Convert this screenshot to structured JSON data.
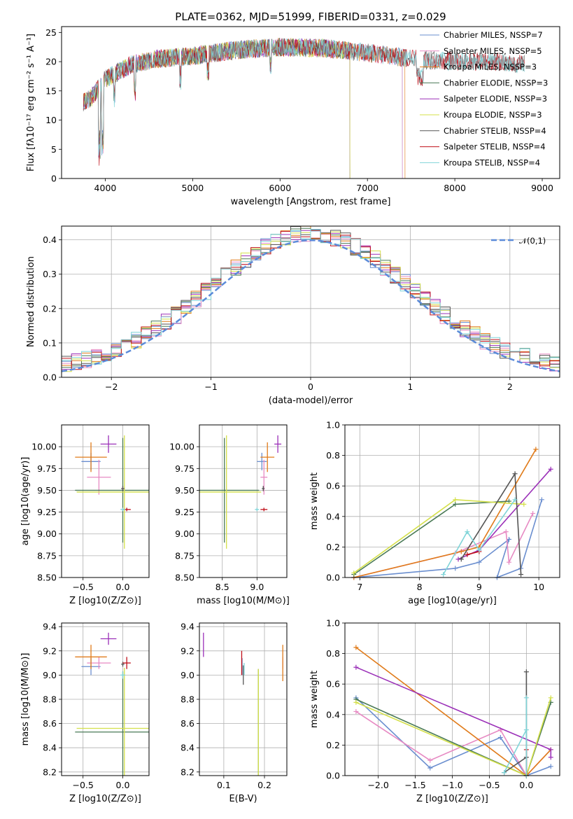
{
  "chart_data": [
    {
      "id": "spectrum",
      "type": "line",
      "title": "PLATE=0362, MJD=51999, FIBERID=0331, z=0.029",
      "xlabel": "wavelength [Angstrom, rest frame]",
      "ylabel": "Flux [fλ10⁻¹⁷ erg cm⁻² s⁻¹ A⁻¹]",
      "xlim": [
        3500,
        9200
      ],
      "ylim": [
        0,
        26
      ],
      "xticks": [
        4000,
        5000,
        6000,
        7000,
        8000,
        9000
      ],
      "yticks": [
        0,
        5,
        10,
        15,
        20,
        25
      ],
      "grid": false,
      "legend_position": "top-right",
      "series": [
        {
          "name": "Chabrier MILES, NSSP=7",
          "color": "#6a8ecf",
          "xrange": [
            3750,
            7400
          ]
        },
        {
          "name": "Salpeter MILES, NSSP=5",
          "color": "#e78ac3",
          "xrange": [
            3750,
            7400
          ]
        },
        {
          "name": "Kroupa MILES, NSSP=3",
          "color": "#e07b1a",
          "xrange": [
            3750,
            7430
          ]
        },
        {
          "name": "Chabrier ELODIE, NSSP=3",
          "color": "#4a7a56",
          "xrange": [
            3750,
            6800
          ]
        },
        {
          "name": "Salpeter ELODIE, NSSP=3",
          "color": "#9b30b8",
          "xrange": [
            3750,
            6800
          ]
        },
        {
          "name": "Kroupa ELODIE, NSSP=3",
          "color": "#d4e04a",
          "xrange": [
            3750,
            6800
          ]
        },
        {
          "name": "Chabrier STELIB, NSSP=4",
          "color": "#555555",
          "xrange": [
            3750,
            8800
          ]
        },
        {
          "name": "Salpeter STELIB, NSSP=4",
          "color": "#c0101a",
          "xrange": [
            3750,
            8800
          ]
        },
        {
          "name": "Kroupa STELIB, NSSP=4",
          "color": "#7fd4d8",
          "xrange": [
            3750,
            8800
          ]
        }
      ],
      "continuum": {
        "x": [
          3750,
          3850,
          4000,
          4300,
          4600,
          5000,
          5500,
          6000,
          6500,
          7000,
          7500,
          8000,
          8500,
          8800
        ],
        "y": [
          13,
          14,
          17,
          19.5,
          20.5,
          21,
          22,
          22.5,
          22.3,
          21.5,
          20.5,
          20,
          20,
          19.5
        ]
      }
    },
    {
      "id": "residuals",
      "type": "histogram",
      "xlabel": "(data-model)/error",
      "ylabel": "Normed distribution",
      "xlim": [
        -2.5,
        2.5
      ],
      "ylim": [
        0,
        0.44
      ],
      "xticks": [
        -2,
        -1,
        0,
        1,
        2
      ],
      "yticks": [
        0.0,
        0.1,
        0.2,
        0.3,
        0.4
      ],
      "grid": true,
      "legend_position": "top-right",
      "reference": {
        "name": "𝒩(0,1)",
        "color": "#5b8bd9",
        "mean": 0,
        "sigma": 1
      },
      "series_colors": [
        "#6a8ecf",
        "#e78ac3",
        "#e07b1a",
        "#4a7a56",
        "#9b30b8",
        "#d4e04a",
        "#555555",
        "#c0101a",
        "#7fd4d8"
      ]
    },
    {
      "id": "age-vs-z",
      "type": "errorbar",
      "xlabel": "Z [log10(Z/Z⊙)]",
      "ylabel": "age  [log10(age/yr)]",
      "xlim": [
        -0.77,
        0.33
      ],
      "ylim": [
        8.5,
        10.25
      ],
      "xticks": [
        -0.5,
        0.0
      ],
      "yticks": [
        8.5,
        8.75,
        9.0,
        9.25,
        9.5,
        9.75,
        10.0
      ],
      "grid": true,
      "points": [
        {
          "x": -0.4,
          "y": 9.83,
          "xerr": 0.12,
          "yerr": 0.1,
          "color": "#6a8ecf"
        },
        {
          "x": -0.3,
          "y": 9.65,
          "xerr": 0.15,
          "yerr": 0.2,
          "color": "#e78ac3"
        },
        {
          "x": -0.4,
          "y": 9.88,
          "xerr": 0.2,
          "yerr": 0.17,
          "color": "#e07b1a"
        },
        {
          "x": 0.0,
          "y": 9.5,
          "xerr": 0.6,
          "yerr": 0.6,
          "color": "#4a7a56"
        },
        {
          "x": -0.18,
          "y": 10.03,
          "xerr": 0.1,
          "yerr": 0.1,
          "color": "#9b30b8"
        },
        {
          "x": 0.02,
          "y": 9.48,
          "xerr": 0.6,
          "yerr": 0.65,
          "color": "#d4e04a"
        },
        {
          "x": 0.0,
          "y": 9.52,
          "xerr": 0.02,
          "yerr": 0.03,
          "color": "#555555"
        },
        {
          "x": 0.05,
          "y": 9.28,
          "xerr": 0.05,
          "yerr": 0.02,
          "color": "#c0101a"
        },
        {
          "x": 0.0,
          "y": 9.28,
          "xerr": 0.03,
          "yerr": 0.02,
          "color": "#7fd4d8"
        }
      ]
    },
    {
      "id": "age-vs-mass",
      "type": "errorbar",
      "xlabel": "mass [log10(M/M⊙)]",
      "ylabel": "",
      "xlim": [
        8.17,
        9.43
      ],
      "ylim": [
        8.5,
        10.25
      ],
      "xticks": [
        8.5,
        9.0
      ],
      "yticks": [
        8.5,
        8.75,
        9.0,
        9.25,
        9.5,
        9.75,
        10.0
      ],
      "grid": true,
      "points": [
        {
          "x": 9.07,
          "y": 9.83,
          "xerr": 0.07,
          "yerr": 0.1,
          "color": "#6a8ecf"
        },
        {
          "x": 9.1,
          "y": 9.65,
          "xerr": 0.05,
          "yerr": 0.2,
          "color": "#e78ac3"
        },
        {
          "x": 9.15,
          "y": 9.88,
          "xerr": 0.1,
          "yerr": 0.17,
          "color": "#e07b1a"
        },
        {
          "x": 8.53,
          "y": 9.5,
          "xerr": 0.5,
          "yerr": 0.6,
          "color": "#4a7a56"
        },
        {
          "x": 9.3,
          "y": 10.03,
          "xerr": 0.05,
          "yerr": 0.1,
          "color": "#9b30b8"
        },
        {
          "x": 8.56,
          "y": 9.48,
          "xerr": 0.5,
          "yerr": 0.65,
          "color": "#d4e04a"
        },
        {
          "x": 9.09,
          "y": 9.52,
          "xerr": 0.02,
          "yerr": 0.03,
          "color": "#555555"
        },
        {
          "x": 9.1,
          "y": 9.28,
          "xerr": 0.05,
          "yerr": 0.02,
          "color": "#c0101a"
        },
        {
          "x": 9.0,
          "y": 9.28,
          "xerr": 0.03,
          "yerr": 0.02,
          "color": "#7fd4d8"
        }
      ]
    },
    {
      "id": "weight-vs-age",
      "type": "line",
      "xlabel": "age  [log10(age/yr)]",
      "ylabel": "mass weight",
      "xlim": [
        6.75,
        10.35
      ],
      "ylim": [
        0,
        1.0
      ],
      "xticks": [
        7,
        8,
        9,
        10
      ],
      "yticks": [
        0.0,
        0.2,
        0.4,
        0.6,
        0.8,
        1.0
      ],
      "grid": true,
      "series": [
        {
          "color": "#6a8ecf",
          "x": [
            6.9,
            8.6,
            9.0,
            9.5,
            9.3,
            9.7,
            10.05
          ],
          "y": [
            0.0,
            0.06,
            0.1,
            0.25,
            0.0,
            0.06,
            0.51
          ]
        },
        {
          "color": "#e78ac3",
          "x": [
            6.9,
            8.6,
            9.45,
            9.5,
            9.9
          ],
          "y": [
            0.0,
            0.16,
            0.3,
            0.1,
            0.42
          ]
        },
        {
          "color": "#e07b1a",
          "x": [
            6.9,
            8.7,
            9.0,
            9.95
          ],
          "y": [
            0.0,
            0.17,
            0.2,
            0.84
          ]
        },
        {
          "color": "#4a7a56",
          "x": [
            6.9,
            8.6,
            9.5
          ],
          "y": [
            0.02,
            0.48,
            0.5
          ]
        },
        {
          "color": "#9b30b8",
          "x": [
            8.65,
            9.0,
            10.2
          ],
          "y": [
            0.12,
            0.18,
            0.71
          ]
        },
        {
          "color": "#d4e04a",
          "x": [
            6.9,
            8.6,
            9.75
          ],
          "y": [
            0.03,
            0.51,
            0.48
          ]
        },
        {
          "color": "#555555",
          "x": [
            8.7,
            9.6,
            9.7
          ],
          "y": [
            0.12,
            0.68,
            0.02
          ]
        },
        {
          "color": "#c0101a",
          "x": [
            8.8,
            9.0
          ],
          "y": [
            0.15,
            0.17
          ]
        },
        {
          "color": "#7fd4d8",
          "x": [
            8.4,
            8.8,
            9.0,
            9.6
          ],
          "y": [
            0.02,
            0.3,
            0.18,
            0.51
          ]
        }
      ]
    },
    {
      "id": "mass-vs-z",
      "type": "errorbar",
      "xlabel": "Z [log10(Z/Z⊙)]",
      "ylabel": "mass [log10(M/M⊙)]",
      "xlim": [
        -0.77,
        0.33
      ],
      "ylim": [
        8.17,
        9.43
      ],
      "xticks": [
        -0.5,
        0.0
      ],
      "yticks": [
        8.2,
        8.4,
        8.6,
        8.8,
        9.0,
        9.2,
        9.4
      ],
      "grid": true,
      "points": [
        {
          "x": -0.4,
          "y": 9.07,
          "xerr": 0.12,
          "yerr": 0.07,
          "color": "#6a8ecf"
        },
        {
          "x": -0.3,
          "y": 9.1,
          "xerr": 0.15,
          "yerr": 0.05,
          "color": "#e78ac3"
        },
        {
          "x": -0.4,
          "y": 9.15,
          "xerr": 0.2,
          "yerr": 0.1,
          "color": "#e07b1a"
        },
        {
          "x": 0.0,
          "y": 8.53,
          "xerr": 0.6,
          "yerr": 0.5,
          "color": "#4a7a56"
        },
        {
          "x": -0.18,
          "y": 9.3,
          "xerr": 0.1,
          "yerr": 0.05,
          "color": "#9b30b8"
        },
        {
          "x": 0.02,
          "y": 8.56,
          "xerr": 0.6,
          "yerr": 0.5,
          "color": "#d4e04a"
        },
        {
          "x": 0.0,
          "y": 9.09,
          "xerr": 0.02,
          "yerr": 0.02,
          "color": "#555555"
        },
        {
          "x": 0.05,
          "y": 9.1,
          "xerr": 0.05,
          "yerr": 0.05,
          "color": "#c0101a"
        },
        {
          "x": 0.0,
          "y": 9.0,
          "xerr": 0.03,
          "yerr": 0.03,
          "color": "#7fd4d8"
        }
      ]
    },
    {
      "id": "mass-vs-ebv",
      "type": "errorbar",
      "xlabel": "E(B-V)",
      "ylabel": "",
      "xlim": [
        0.04,
        0.255
      ],
      "ylim": [
        8.17,
        9.43
      ],
      "xticks": [
        0.1,
        0.2
      ],
      "yticks": [
        8.2,
        8.4,
        8.6,
        8.8,
        9.0,
        9.2,
        9.4
      ],
      "grid": true,
      "points": [
        {
          "x": 0.145,
          "y": 9.07,
          "xerr": 0,
          "yerr": 0.07,
          "color": "#6a8ecf"
        },
        {
          "x": 0.245,
          "y": 9.1,
          "xerr": 0,
          "yerr": 0.05,
          "color": "#e78ac3"
        },
        {
          "x": 0.245,
          "y": 9.1,
          "xerr": 0,
          "yerr": 0.15,
          "color": "#e07b1a"
        },
        {
          "x": 0.185,
          "y": 8.6,
          "xerr": 0,
          "yerr": 0.45,
          "color": "#4a7a56"
        },
        {
          "x": 0.05,
          "y": 9.25,
          "xerr": 0,
          "yerr": 0.1,
          "color": "#9b30b8"
        },
        {
          "x": 0.185,
          "y": 8.6,
          "xerr": 0,
          "yerr": 0.45,
          "color": "#d4e04a"
        },
        {
          "x": 0.148,
          "y": 9.0,
          "xerr": 0,
          "yerr": 0.08,
          "color": "#555555"
        },
        {
          "x": 0.144,
          "y": 9.1,
          "xerr": 0,
          "yerr": 0.1,
          "color": "#c0101a"
        },
        {
          "x": 0.15,
          "y": 9.05,
          "xerr": 0,
          "yerr": 0.05,
          "color": "#7fd4d8"
        }
      ]
    },
    {
      "id": "weight-vs-z",
      "type": "line",
      "xlabel": "Z [log10(Z/Z⊙)]",
      "ylabel": "mass weight",
      "xlim": [
        -2.45,
        0.45
      ],
      "ylim": [
        0,
        1.0
      ],
      "xticks": [
        -2.0,
        -1.5,
        -1.0,
        -0.5,
        0.0
      ],
      "yticks": [
        0.0,
        0.2,
        0.4,
        0.6,
        0.8,
        1.0
      ],
      "grid": true,
      "series": [
        {
          "color": "#6a8ecf",
          "x": [
            -2.3,
            -1.3,
            -0.35,
            0.0,
            0.33
          ],
          "y": [
            0.51,
            0.05,
            0.25,
            0.0,
            0.06
          ]
        },
        {
          "color": "#e78ac3",
          "x": [
            -2.3,
            -1.3,
            -0.35,
            0.0,
            0.33
          ],
          "y": [
            0.42,
            0.1,
            0.3,
            0.0,
            0.17
          ]
        },
        {
          "color": "#e07b1a",
          "x": [
            -2.3,
            0.0,
            0.33
          ],
          "y": [
            0.84,
            0.0,
            0.17
          ]
        },
        {
          "color": "#4a7a56",
          "x": [
            -2.3,
            0.0,
            0.33
          ],
          "y": [
            0.5,
            0.0,
            0.48
          ]
        },
        {
          "color": "#9b30b8",
          "x": [
            -2.3,
            0.33,
            0.33
          ],
          "y": [
            0.71,
            0.17,
            0.12
          ]
        },
        {
          "color": "#d4e04a",
          "x": [
            -2.3,
            0.0,
            0.33
          ],
          "y": [
            0.48,
            0.0,
            0.51
          ]
        },
        {
          "color": "#555555",
          "x": [
            -0.3,
            0.0,
            0.0,
            0.0
          ],
          "y": [
            0.02,
            0.12,
            0.68,
            0.0
          ]
        },
        {
          "color": "#c0101a",
          "x": [
            0.0,
            0.0
          ],
          "y": [
            0.0,
            0.17
          ]
        },
        {
          "color": "#7fd4d8",
          "x": [
            -0.3,
            0.0,
            0.0,
            0.0
          ],
          "y": [
            0.02,
            0.3,
            0.51,
            0.0
          ]
        }
      ]
    }
  ]
}
